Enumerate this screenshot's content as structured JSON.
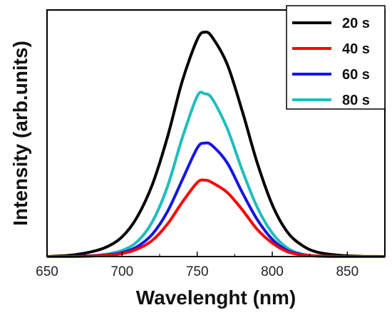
{
  "chart_data": {
    "type": "line",
    "title": "",
    "xlabel": "Wavelenght (nm)",
    "ylabel": "Intensity (arb.units)",
    "xlim": [
      650,
      875
    ],
    "ylim": [
      0,
      1.0
    ],
    "x_ticks": [
      650,
      700,
      750,
      800,
      850
    ],
    "y_ticks_shown": false,
    "legend_position": "top-right",
    "x": [
      650,
      665,
      680,
      690,
      700,
      710,
      720,
      730,
      740,
      750,
      755,
      760,
      770,
      780,
      790,
      800,
      810,
      820,
      830,
      845,
      860,
      875
    ],
    "series": [
      {
        "name": "20 s",
        "color": "#000000",
        "values": [
          0.0,
          0.005,
          0.02,
          0.04,
          0.08,
          0.16,
          0.29,
          0.48,
          0.71,
          0.88,
          0.91,
          0.89,
          0.78,
          0.59,
          0.38,
          0.21,
          0.1,
          0.045,
          0.018,
          0.005,
          0.001,
          0.0
        ]
      },
      {
        "name": "40 s",
        "color": "#ff0000",
        "values": [
          0.0,
          0.0,
          0.002,
          0.005,
          0.012,
          0.03,
          0.065,
          0.13,
          0.22,
          0.3,
          0.31,
          0.3,
          0.26,
          0.19,
          0.11,
          0.055,
          0.02,
          0.006,
          0.002,
          0.0,
          0.0,
          0.0
        ]
      },
      {
        "name": "60 s",
        "color": "#1515e6",
        "values": [
          0.0,
          0.0,
          0.003,
          0.007,
          0.016,
          0.04,
          0.09,
          0.18,
          0.31,
          0.44,
          0.46,
          0.45,
          0.38,
          0.26,
          0.15,
          0.07,
          0.025,
          0.008,
          0.002,
          0.0,
          0.0,
          0.0
        ]
      },
      {
        "name": "80 s",
        "color": "#1fbdbd",
        "values": [
          0.0,
          0.0,
          0.004,
          0.01,
          0.025,
          0.06,
          0.14,
          0.28,
          0.48,
          0.65,
          0.66,
          0.64,
          0.52,
          0.35,
          0.2,
          0.095,
          0.035,
          0.01,
          0.003,
          0.0,
          0.0,
          0.0
        ]
      }
    ]
  }
}
